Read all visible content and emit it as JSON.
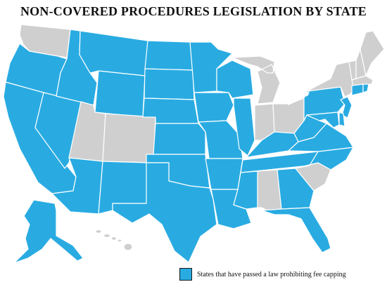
{
  "title": "NON-COVERED PROCEDURES LEGISLATION BY STATE",
  "colors": {
    "passed": "#29abe2",
    "not_passed": "#cfcfcf",
    "border": "#ffffff",
    "water": "#ffffff"
  },
  "legend": {
    "label": "States that have passed a law prohibiting fee capping",
    "color": "#29abe2"
  },
  "states": {
    "WA": "not_passed",
    "OR": "passed",
    "CA": "passed",
    "NV": "passed",
    "ID": "passed",
    "MT": "passed",
    "WY": "passed",
    "UT": "not_passed",
    "CO": "not_passed",
    "AZ": "passed",
    "NM": "passed",
    "ND": "passed",
    "SD": "passed",
    "NE": "passed",
    "KS": "passed",
    "OK": "passed",
    "TX": "passed",
    "MN": "passed",
    "IA": "passed",
    "MO": "passed",
    "AR": "passed",
    "LA": "passed",
    "WI": "passed",
    "IL": "passed",
    "MI": "not_passed",
    "IN": "not_passed",
    "OH": "not_passed",
    "KY": "passed",
    "TN": "passed",
    "MS": "passed",
    "AL": "not_passed",
    "GA": "passed",
    "FL": "passed",
    "SC": "not_passed",
    "NC": "passed",
    "VA": "passed",
    "WV": "passed",
    "PA": "passed",
    "NY": "not_passed",
    "VT": "not_passed",
    "NH": "not_passed",
    "ME": "not_passed",
    "MA": "not_passed",
    "RI": "passed",
    "CT": "passed",
    "NJ": "passed",
    "DE": "passed",
    "MD": "passed",
    "AK": "passed",
    "HI": "not_passed"
  }
}
